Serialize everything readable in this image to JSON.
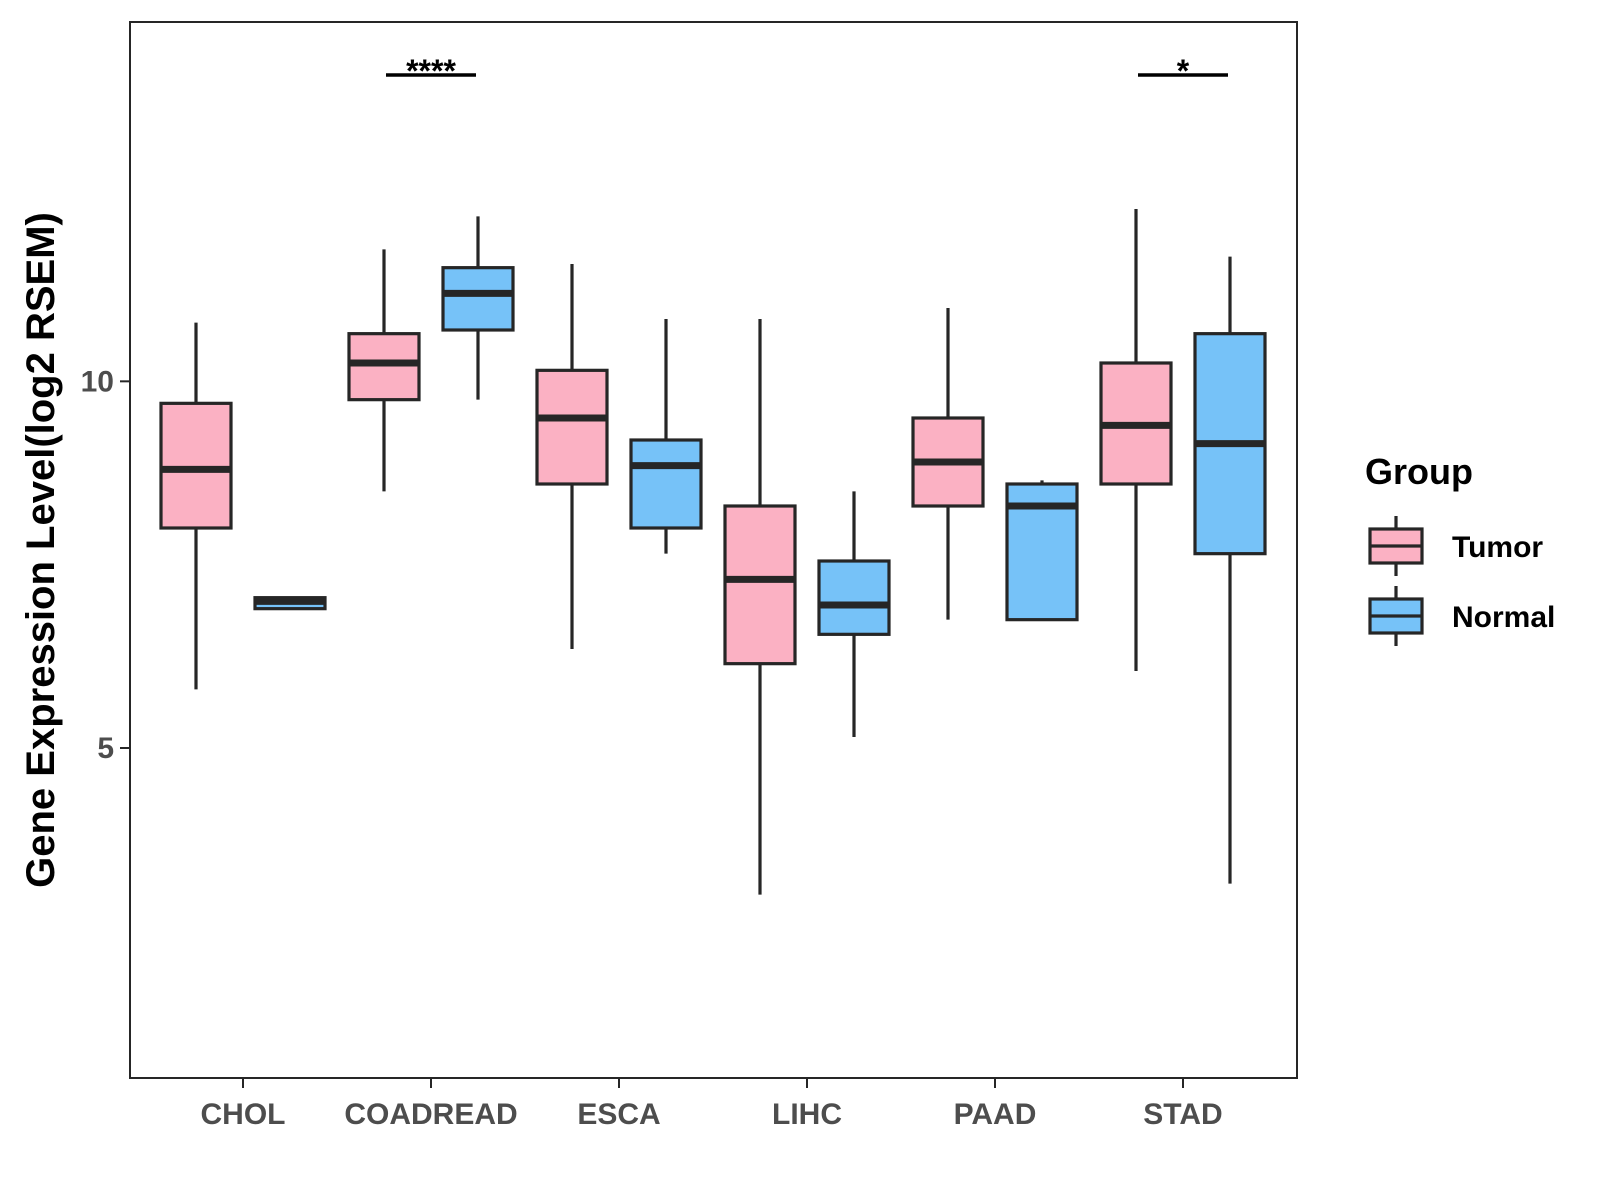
{
  "chart_data": {
    "type": "boxplot",
    "title": "",
    "xlabel": "",
    "ylabel": "Gene Expression Level(log2 RSEM)",
    "ylim": [
      0.5,
      14.9
    ],
    "y_ticks": [
      5,
      10
    ],
    "grid": false,
    "categories": [
      "CHOL",
      "COADREAD",
      "ESCA",
      "LIHC",
      "PAAD",
      "STAD"
    ],
    "legend": {
      "title": "Group",
      "position": "right",
      "entries": [
        "Tumor",
        "Normal"
      ]
    },
    "colors": {
      "Tumor": "#fbb1c3",
      "Normal": "#76c2f8",
      "outline": "#262626",
      "panel_border": "#262626"
    },
    "series": [
      {
        "name": "Tumor",
        "boxes": [
          {
            "category": "CHOL",
            "whisker_low": 5.8,
            "q1": 8.0,
            "median": 8.8,
            "q3": 9.7,
            "whisker_high": 10.8
          },
          {
            "category": "COADREAD",
            "whisker_low": 8.5,
            "q1": 9.75,
            "median": 10.25,
            "q3": 10.65,
            "whisker_high": 11.8
          },
          {
            "category": "ESCA",
            "whisker_low": 6.35,
            "q1": 8.6,
            "median": 9.5,
            "q3": 10.15,
            "whisker_high": 11.6
          },
          {
            "category": "LIHC",
            "whisker_low": 3.0,
            "q1": 6.15,
            "median": 7.3,
            "q3": 8.3,
            "whisker_high": 10.85
          },
          {
            "category": "PAAD",
            "whisker_low": 6.75,
            "q1": 8.3,
            "median": 8.9,
            "q3": 9.5,
            "whisker_high": 11.0
          },
          {
            "category": "STAD",
            "whisker_low": 6.05,
            "q1": 8.6,
            "median": 9.4,
            "q3": 10.25,
            "whisker_high": 12.35
          }
        ]
      },
      {
        "name": "Normal",
        "boxes": [
          {
            "category": "CHOL",
            "whisker_low": 6.9,
            "q1": 6.9,
            "median": 7.0,
            "q3": 7.05,
            "whisker_high": 7.05
          },
          {
            "category": "COADREAD",
            "whisker_low": 9.75,
            "q1": 10.7,
            "median": 11.2,
            "q3": 11.55,
            "whisker_high": 12.25
          },
          {
            "category": "ESCA",
            "whisker_low": 7.65,
            "q1": 8.0,
            "median": 8.85,
            "q3": 9.2,
            "whisker_high": 10.85
          },
          {
            "category": "LIHC",
            "whisker_low": 5.15,
            "q1": 6.55,
            "median": 6.95,
            "q3": 7.55,
            "whisker_high": 8.5
          },
          {
            "category": "PAAD",
            "whisker_low": 6.75,
            "q1": 6.75,
            "median": 8.3,
            "q3": 8.6,
            "whisker_high": 8.65
          },
          {
            "category": "STAD",
            "whisker_low": 3.15,
            "q1": 7.65,
            "median": 9.15,
            "q3": 10.65,
            "whisker_high": 11.7
          }
        ]
      }
    ],
    "annotations": [
      {
        "category": "COADREAD",
        "label": "****"
      },
      {
        "category": "STAD",
        "label": "*"
      }
    ]
  }
}
